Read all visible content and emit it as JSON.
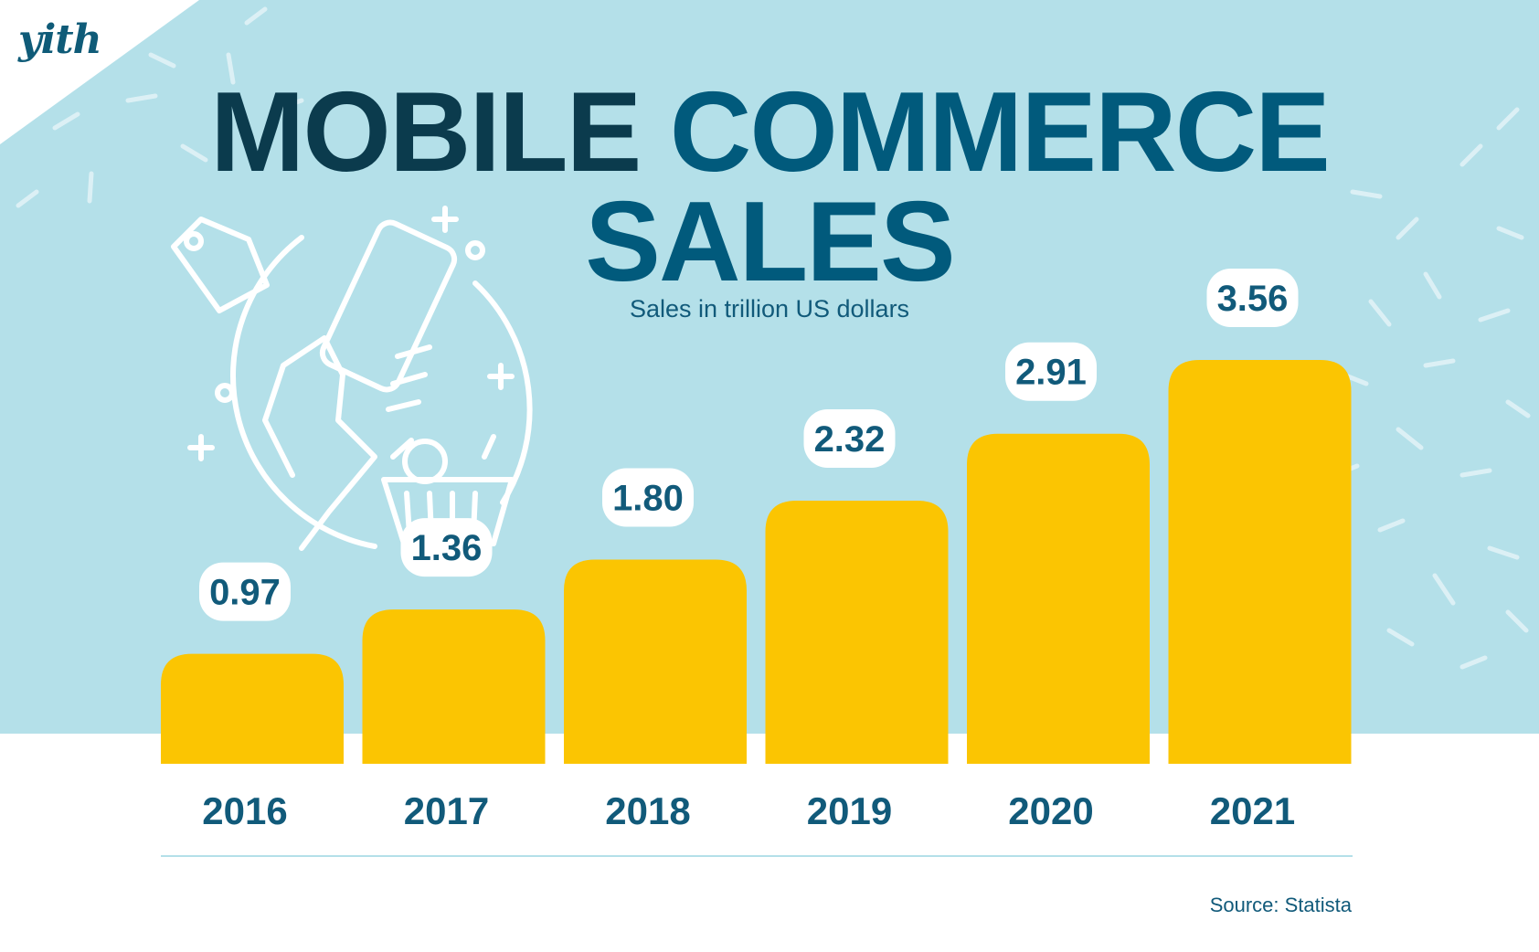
{
  "brand": {
    "logo_text": "yith"
  },
  "title": {
    "part1": "MOBILE",
    "part2": "COMMERCE",
    "line2": "SALES"
  },
  "subtitle": "Sales in trillion US dollars",
  "source": "Source: Statista",
  "colors": {
    "sky": "#b4e0e9",
    "bar": "#fbc502",
    "title_dark": "#0b3b4d",
    "title_blue": "#015a7c",
    "label": "#115a7a",
    "decoration": "#ffffff"
  },
  "decorations": [
    "hand-holding-phone-icon",
    "price-tag-icon",
    "shopping-basket-icon",
    "sparkle-icon"
  ],
  "chart_data": {
    "type": "bar",
    "title": "MOBILE COMMERCE SALES",
    "subtitle": "Sales in trillion US dollars",
    "categories": [
      "2016",
      "2017",
      "2018",
      "2019",
      "2020",
      "2021"
    ],
    "values": [
      0.97,
      1.36,
      1.8,
      2.32,
      2.91,
      3.56
    ],
    "value_labels": [
      "0.97",
      "1.36",
      "1.80",
      "2.32",
      "2.91",
      "3.56"
    ],
    "ylim": [
      0,
      3.56
    ],
    "grid": false,
    "legend": "none",
    "source": "Source: Statista"
  }
}
